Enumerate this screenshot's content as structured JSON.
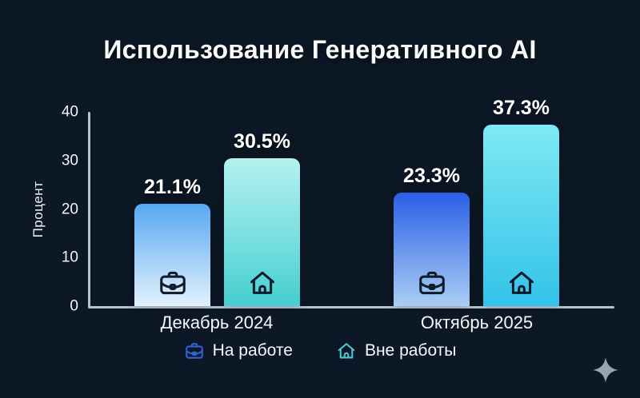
{
  "title": "Использование Генеративного AI",
  "chart_data": {
    "type": "bar",
    "title": "Использование Генеративного AI",
    "categories": [
      "Декабрь 2024",
      "Октябрь 2025"
    ],
    "series": [
      {
        "name": "На работе",
        "icon": "briefcase-icon",
        "values": [
          21.1,
          23.3
        ],
        "labels": [
          "21.1%",
          "23.3%"
        ],
        "gradients": [
          [
            "#58a8f2",
            "#e2f1fd"
          ],
          [
            "#2a5fe6",
            "#aacdf5"
          ]
        ],
        "legend_color": "#2f63d8"
      },
      {
        "name": "Вне работы",
        "icon": "house-icon",
        "values": [
          30.5,
          37.3
        ],
        "labels": [
          "30.5%",
          "37.3%"
        ],
        "gradients": [
          [
            "#b5f2f0",
            "#46ced0"
          ],
          [
            "#7ee9f3",
            "#33c2e9"
          ]
        ],
        "legend_color": "#49c7d6"
      }
    ],
    "ylabel": "Процент",
    "ylim": [
      0,
      40
    ],
    "yticks": [
      "0",
      "10",
      "20",
      "30",
      "40"
    ],
    "grid": false,
    "legend_position": "bottom",
    "bar_icon_color": "#0e1b2a",
    "axis_color": "#b7c3cd",
    "background_color": "#0d1826",
    "text_color": "#ffffff"
  },
  "decor": {
    "sparkle_icon": "sparkle-icon",
    "sparkle_color": "#97a5b3"
  }
}
